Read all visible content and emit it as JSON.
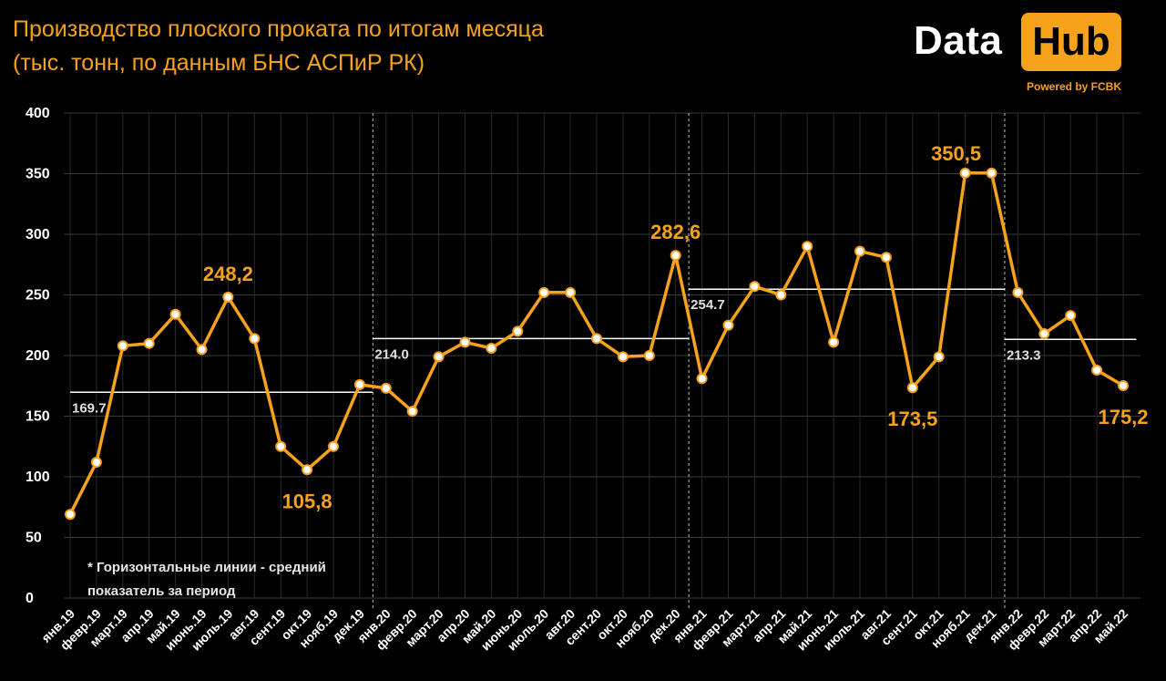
{
  "title_line1": "Производство плоского проката по итогам месяца",
  "title_line2": "(тыс. тонн, по данным БНС АСПиР РК)",
  "logo": {
    "data": "Data",
    "hub": "Hub",
    "powered": "Powered by FCBK"
  },
  "note_line1": "* Горизонтальные линии - средний",
  "note_line2": "показатель за период",
  "colors": {
    "line": "#f7a21b",
    "background": "#000000",
    "grid": "#3a3a3a",
    "average": "#ffffff"
  },
  "chart_data": {
    "type": "line",
    "title": "Производство плоского проката по итогам месяца",
    "subtitle": "(тыс. тонн, по данным БНС АСПиР РК)",
    "ylim": [
      0,
      400
    ],
    "yticks": [
      0,
      50,
      100,
      150,
      200,
      250,
      300,
      350,
      400
    ],
    "grid": true,
    "categories": [
      "янв.19",
      "февр.19",
      "март.19",
      "апр.19",
      "май.19",
      "июнь.19",
      "июль.19",
      "авг.19",
      "сент.19",
      "окт.19",
      "нояб.19",
      "дек.19",
      "янв.20",
      "февр.20",
      "март.20",
      "апр.20",
      "май.20",
      "июнь.20",
      "июль.20",
      "авг.20",
      "сент.20",
      "окт.20",
      "нояб.20",
      "дек.20",
      "янв.21",
      "февр.21",
      "март.21",
      "апр.21",
      "май.21",
      "июнь.21",
      "июль.21",
      "авг.21",
      "сент.21",
      "окт.21",
      "нояб.21",
      "дек.21",
      "янв.22",
      "февр.22",
      "март.22",
      "апр.22",
      "май.22"
    ],
    "values": [
      69,
      112,
      208,
      210,
      234,
      205,
      248.2,
      214,
      125,
      105.8,
      125,
      176,
      173,
      154,
      199,
      211,
      206,
      220,
      252,
      252,
      214,
      199,
      200,
      282.6,
      181,
      225,
      257,
      250,
      290,
      211,
      286,
      281,
      173.5,
      199,
      350.5,
      350.5,
      252,
      218,
      233,
      188,
      175.2
    ],
    "averages": [
      {
        "start": 0,
        "end": 11,
        "value": 169.7,
        "label": "169.7"
      },
      {
        "start": 12,
        "end": 23,
        "value": 214.0,
        "label": "214.0"
      },
      {
        "start": 24,
        "end": 35,
        "value": 254.7,
        "label": "254.7"
      },
      {
        "start": 36,
        "end": 40,
        "value": 213.3,
        "label": "213.3"
      }
    ],
    "annotations": [
      {
        "index": 6,
        "label": "248,2",
        "position": "above"
      },
      {
        "index": 9,
        "label": "105,8",
        "position": "below"
      },
      {
        "index": 23,
        "label": "282,6",
        "position": "above"
      },
      {
        "index": 32,
        "label": "173,5",
        "position": "below"
      },
      {
        "index": 34,
        "label": "350,5",
        "position": "above-right"
      },
      {
        "index": 40,
        "label": "175,2",
        "position": "below"
      }
    ],
    "separators_after": [
      11,
      23,
      35
    ]
  }
}
